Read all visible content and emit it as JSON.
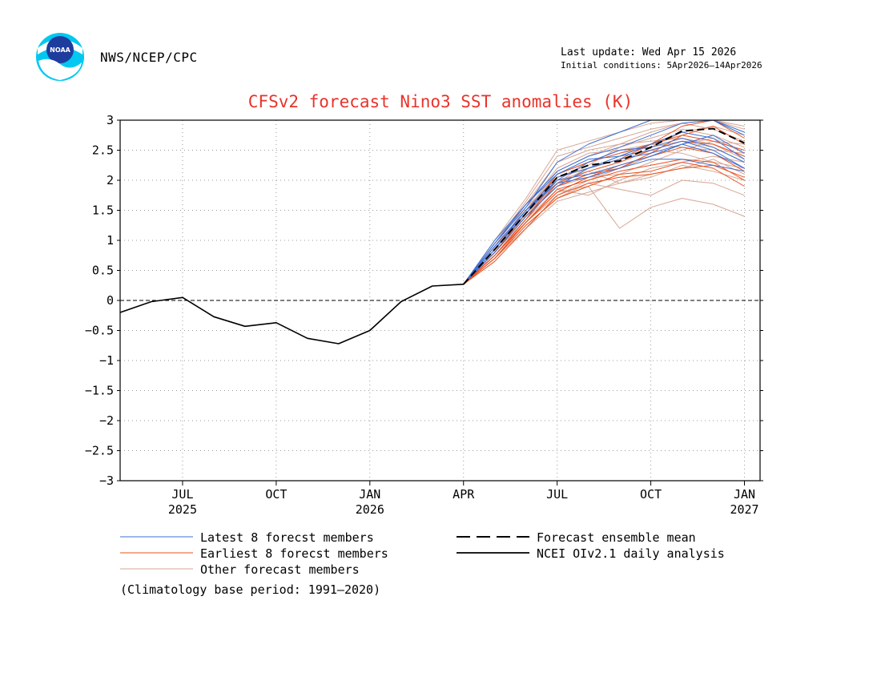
{
  "header": {
    "agency": "NWS/NCEP/CPC",
    "logo_text": "NOAA",
    "last_update": "Last update: Wed Apr 15 2026",
    "initial_conditions": "Initial conditions: 5Apr2026—14Apr2026"
  },
  "footer": {
    "climatology": "(Climatology base period: 1991—2020)"
  },
  "colors": {
    "title": "#e8332a",
    "latest": "#3b6fd4",
    "earliest": "#e8501e",
    "other": "#d7a694",
    "analysis": "#000000"
  },
  "chart_data": {
    "type": "line",
    "title": "CFSv2 forecast Nino3 SST anomalies (K)",
    "xlabel": "",
    "ylabel": "",
    "ylim": [
      -3,
      3
    ],
    "xlim": [
      -0.5,
      20
    ],
    "yticks": [
      {
        "value": 3,
        "label": "3"
      },
      {
        "value": 2.5,
        "label": "2.5"
      },
      {
        "value": 2,
        "label": "2"
      },
      {
        "value": 1.5,
        "label": "1.5"
      },
      {
        "value": 1,
        "label": "1"
      },
      {
        "value": 0.5,
        "label": "0.5"
      },
      {
        "value": 0,
        "label": "0"
      },
      {
        "value": -0.5,
        "label": "−0.5"
      },
      {
        "value": -1,
        "label": "−1"
      },
      {
        "value": -1.5,
        "label": "−1.5"
      },
      {
        "value": -2,
        "label": "−2"
      },
      {
        "value": -2.5,
        "label": "−2.5"
      },
      {
        "value": -3,
        "label": "−3"
      }
    ],
    "xticks": [
      {
        "value": 1.5,
        "label": "JUL",
        "year": "2025"
      },
      {
        "value": 4.5,
        "label": "OCT",
        "year": ""
      },
      {
        "value": 7.5,
        "label": "JAN",
        "year": "2026"
      },
      {
        "value": 10.5,
        "label": "APR",
        "year": ""
      },
      {
        "value": 13.5,
        "label": "JUL",
        "year": ""
      },
      {
        "value": 16.5,
        "label": "OCT",
        "year": ""
      },
      {
        "value": 19.5,
        "label": "JAN",
        "year": "2027"
      }
    ],
    "analysis": {
      "name": "NCEI OIv2.1 daily analysis",
      "x": [
        -0.5,
        0.5,
        1.5,
        2.5,
        3.5,
        4.5,
        5.5,
        6.5,
        7.5,
        8.5,
        9.5,
        10.5
      ],
      "y": [
        -0.2,
        -0.02,
        0.05,
        -0.27,
        -0.43,
        -0.37,
        -0.63,
        -0.72,
        -0.5,
        -0.02,
        0.24,
        0.27
      ]
    },
    "forecast_x": [
      10.5,
      11.5,
      12.5,
      13.5,
      14.5,
      15.5,
      16.5,
      17.5,
      18.5,
      19.5
    ],
    "ensemble_mean": {
      "name": "Forecast ensemble mean",
      "y": [
        0.27,
        0.85,
        1.45,
        2.05,
        2.25,
        2.32,
        2.55,
        2.82,
        2.86,
        2.62
      ]
    },
    "latest_members": {
      "name": "Latest 8 forecst members",
      "series": [
        [
          0.27,
          1.0,
          1.6,
          2.15,
          2.4,
          2.55,
          2.75,
          2.95,
          3.0,
          2.75
        ],
        [
          0.27,
          0.95,
          1.55,
          2.3,
          2.6,
          2.8,
          3.0,
          3.0,
          3.0,
          2.8
        ],
        [
          0.27,
          0.9,
          1.5,
          2.0,
          2.3,
          2.5,
          2.55,
          2.7,
          2.55,
          2.3
        ],
        [
          0.27,
          0.85,
          1.45,
          2.0,
          2.1,
          2.25,
          2.4,
          2.6,
          2.75,
          2.45
        ],
        [
          0.27,
          0.95,
          1.6,
          2.1,
          2.35,
          2.4,
          2.5,
          2.65,
          2.5,
          2.2
        ],
        [
          0.27,
          0.9,
          1.5,
          1.95,
          2.05,
          2.2,
          2.35,
          2.35,
          2.25,
          2.15
        ],
        [
          0.27,
          0.8,
          1.4,
          1.9,
          2.2,
          2.4,
          2.6,
          2.8,
          2.7,
          2.35
        ],
        [
          0.27,
          0.85,
          1.5,
          2.05,
          2.2,
          2.35,
          2.45,
          2.6,
          2.45,
          2.2
        ]
      ]
    },
    "earliest_members": {
      "name": "Earliest 8 forecst members",
      "series": [
        [
          0.27,
          0.75,
          1.3,
          1.8,
          2.05,
          2.25,
          2.4,
          2.55,
          2.45,
          2.15
        ],
        [
          0.27,
          0.7,
          1.25,
          1.7,
          1.9,
          2.1,
          2.15,
          2.3,
          2.2,
          1.9
        ],
        [
          0.27,
          0.8,
          1.4,
          1.9,
          2.1,
          2.2,
          2.45,
          2.75,
          2.9,
          2.6
        ],
        [
          0.27,
          0.75,
          1.35,
          2.05,
          2.2,
          2.35,
          2.6,
          2.9,
          3.0,
          2.7
        ],
        [
          0.27,
          0.65,
          1.2,
          1.75,
          1.95,
          2.05,
          2.1,
          2.2,
          2.25,
          2.05
        ],
        [
          0.27,
          0.8,
          1.45,
          2.1,
          2.3,
          2.45,
          2.6,
          2.75,
          2.65,
          2.5
        ],
        [
          0.27,
          0.7,
          1.3,
          1.85,
          2.0,
          2.15,
          2.25,
          2.35,
          2.3,
          2.0
        ],
        [
          0.27,
          0.75,
          1.35,
          1.95,
          2.15,
          2.3,
          2.5,
          2.65,
          2.6,
          2.4
        ]
      ]
    },
    "other_members": {
      "name": "Other forecast members",
      "series": [
        [
          0.27,
          0.9,
          1.6,
          2.3,
          2.5,
          2.6,
          2.8,
          2.95,
          3.0,
          2.85
        ],
        [
          0.27,
          1.0,
          1.7,
          2.5,
          2.65,
          2.8,
          2.95,
          3.0,
          3.0,
          2.9
        ],
        [
          0.27,
          0.85,
          1.5,
          2.1,
          2.3,
          2.5,
          2.6,
          2.55,
          2.5,
          2.45
        ],
        [
          0.27,
          0.75,
          1.3,
          1.8,
          1.9,
          1.2,
          1.55,
          1.7,
          1.6,
          1.4
        ],
        [
          0.27,
          0.7,
          1.25,
          1.7,
          1.95,
          1.85,
          1.75,
          2.0,
          1.95,
          1.75
        ],
        [
          0.27,
          0.8,
          1.4,
          1.95,
          2.2,
          2.35,
          2.5,
          2.45,
          2.3,
          2.2
        ],
        [
          0.27,
          0.95,
          1.55,
          2.05,
          2.25,
          2.55,
          2.7,
          2.85,
          2.75,
          2.55
        ],
        [
          0.27,
          0.85,
          1.45,
          1.9,
          2.05,
          2.1,
          2.3,
          2.5,
          2.65,
          2.6
        ],
        [
          0.27,
          0.8,
          1.35,
          1.85,
          1.75,
          2.0,
          2.2,
          2.3,
          2.4,
          2.3
        ],
        [
          0.27,
          0.9,
          1.5,
          2.15,
          2.4,
          2.6,
          2.65,
          2.7,
          2.6,
          2.35
        ],
        [
          0.27,
          0.75,
          1.3,
          1.75,
          2.0,
          2.2,
          2.4,
          2.6,
          2.7,
          2.45
        ],
        [
          0.27,
          0.85,
          1.55,
          2.2,
          2.45,
          2.5,
          2.55,
          2.8,
          2.9,
          2.75
        ],
        [
          0.27,
          0.95,
          1.65,
          2.4,
          2.55,
          2.7,
          2.85,
          2.95,
          2.85,
          2.65
        ],
        [
          0.27,
          0.8,
          1.4,
          2.0,
          2.15,
          1.95,
          2.05,
          2.25,
          2.15,
          2.0
        ],
        [
          0.27,
          0.9,
          1.45,
          1.95,
          2.3,
          2.45,
          2.55,
          2.65,
          2.55,
          2.3
        ],
        [
          0.27,
          0.7,
          1.2,
          1.65,
          1.8,
          1.95,
          2.1,
          2.2,
          2.35,
          2.1
        ]
      ]
    },
    "legend": [
      {
        "key": "latest",
        "label": "Latest 8 forecst members",
        "style": "solid"
      },
      {
        "key": "earliest",
        "label": "Earliest 8 forecst members",
        "style": "solid"
      },
      {
        "key": "other",
        "label": "Other forecast members",
        "style": "solid"
      },
      {
        "key": "mean",
        "label": "Forecast ensemble mean",
        "style": "dashed"
      },
      {
        "key": "analysis",
        "label": "NCEI OIv2.1 daily analysis",
        "style": "solid"
      }
    ]
  }
}
